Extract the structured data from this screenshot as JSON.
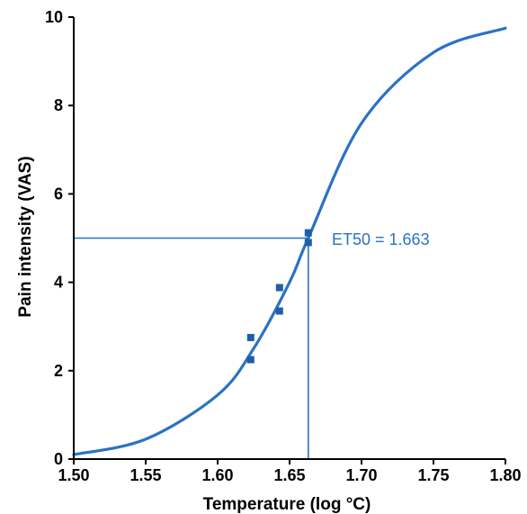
{
  "chart_data": {
    "type": "scatter",
    "xlabel": "Temperature (log °C)",
    "ylabel": "Pain intensity (VAS)",
    "xlim": [
      1.5,
      1.8
    ],
    "ylim": [
      0,
      10
    ],
    "x_ticks": [
      "1.50",
      "1.55",
      "1.60",
      "1.65",
      "1.70",
      "1.75",
      "1.80"
    ],
    "y_ticks": [
      "0",
      "2",
      "4",
      "6",
      "8",
      "10"
    ],
    "grid": false,
    "points": [
      {
        "x": 1.623,
        "y": 2.75
      },
      {
        "x": 1.623,
        "y": 2.25
      },
      {
        "x": 1.643,
        "y": 3.88
      },
      {
        "x": 1.643,
        "y": 3.35
      },
      {
        "x": 1.663,
        "y": 5.12
      },
      {
        "x": 1.663,
        "y": 4.9
      }
    ],
    "fit_curve": {
      "type": "sigmoid",
      "midpoint": 1.663,
      "midpoint_y": 5,
      "curve": [
        {
          "x": 1.5,
          "y": 0.1
        },
        {
          "x": 1.55,
          "y": 0.45
        },
        {
          "x": 1.6,
          "y": 1.45
        },
        {
          "x": 1.625,
          "y": 2.5
        },
        {
          "x": 1.65,
          "y": 4.0
        },
        {
          "x": 1.663,
          "y": 5.0
        },
        {
          "x": 1.7,
          "y": 7.6
        },
        {
          "x": 1.75,
          "y": 9.2
        },
        {
          "x": 1.8,
          "y": 9.75
        }
      ]
    },
    "reference_lines": {
      "x": 1.663,
      "y": 5
    },
    "annotation": "ET50 = 1.663",
    "colors": {
      "series": "#2a72c4",
      "axis": "#000000"
    }
  }
}
